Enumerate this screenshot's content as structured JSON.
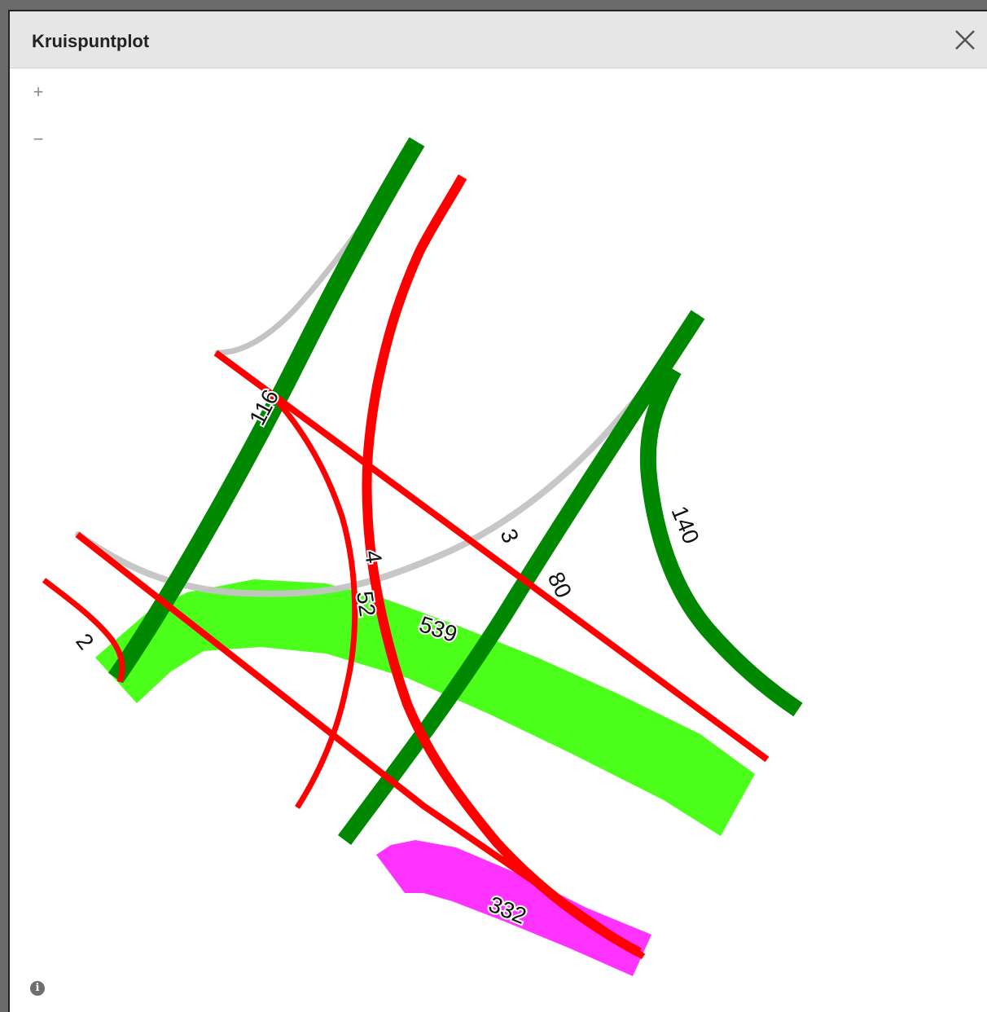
{
  "window": {
    "title": "Kruispuntplot",
    "close_icon": "close-icon"
  },
  "map": {
    "zoom_in_label": "+",
    "zoom_out_label": "−",
    "info_icon": "info-icon",
    "info_label": "i",
    "colors": {
      "dark_green": "#008800",
      "light_green": "#4cff1a",
      "red": "#ff0000",
      "magenta": "#ff33ff",
      "grey": "#c4c4c4"
    },
    "flows": [
      {
        "id": "flow-116",
        "label": "116",
        "color": "dark_green"
      },
      {
        "id": "flow-140",
        "label": "140",
        "color": "dark_green"
      },
      {
        "id": "flow-80",
        "label": "80",
        "color": "dark_green"
      },
      {
        "id": "flow-539",
        "label": "539",
        "color": "light_green"
      },
      {
        "id": "flow-332",
        "label": "332",
        "color": "magenta"
      },
      {
        "id": "flow-3",
        "label": "3",
        "color": "red"
      },
      {
        "id": "flow-4",
        "label": "4",
        "color": "red"
      },
      {
        "id": "flow-52",
        "label": "52",
        "color": "red"
      },
      {
        "id": "flow-2",
        "label": "2",
        "color": "red"
      }
    ]
  }
}
